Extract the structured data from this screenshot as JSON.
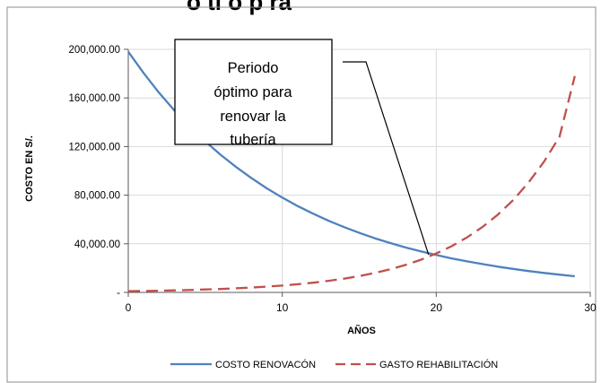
{
  "chart_data": {
    "type": "line",
    "title_fragment": "ó ti o p ra",
    "xlabel": "AÑOS",
    "ylabel": "COSTO EN S/.",
    "xlim": [
      0,
      30
    ],
    "ylim": [
      0,
      200000
    ],
    "x_ticks": [
      "0",
      "10",
      "20",
      "30"
    ],
    "y_ticks": [
      "-",
      "40,000.00",
      "80,000.00",
      "120,000.00",
      "160,000.00",
      "200,000.00"
    ],
    "y_tick_values": [
      0,
      40000,
      80000,
      120000,
      160000,
      200000
    ],
    "x_tick_values": [
      0,
      10,
      20,
      30
    ],
    "grid": true,
    "legend_position": "bottom",
    "series": [
      {
        "name": "COSTO RENOVACÓN",
        "color": "#4f81bd",
        "style": "solid",
        "x": [
          0,
          1,
          2,
          3,
          4,
          5,
          6,
          7,
          8,
          9,
          10,
          11,
          12,
          13,
          14,
          15,
          16,
          17,
          18,
          19,
          20,
          21,
          22,
          23,
          24,
          25,
          26,
          27,
          28,
          29
        ],
        "y": [
          198000,
          180400,
          164300,
          149700,
          136400,
          124300,
          113200,
          103200,
          94000,
          85600,
          78000,
          71100,
          64800,
          59000,
          53800,
          49000,
          44600,
          40700,
          37000,
          33800,
          30800,
          28000,
          25500,
          23300,
          21200,
          19300,
          17600,
          16000,
          14600,
          13300
        ]
      },
      {
        "name": "GASTO REHABILITACIÓN",
        "color": "#c0504d",
        "style": "dashed",
        "x": [
          0,
          1,
          2,
          3,
          4,
          5,
          6,
          7,
          8,
          9,
          10,
          11,
          12,
          13,
          14,
          15,
          16,
          17,
          18,
          19,
          20,
          21,
          22,
          23,
          24,
          25,
          26,
          27,
          28,
          29
        ],
        "y": [
          1000,
          1200,
          1400,
          1700,
          2000,
          2400,
          2800,
          3400,
          4000,
          4800,
          5600,
          6700,
          8000,
          9500,
          11300,
          13400,
          16000,
          19000,
          22600,
          26900,
          32000,
          38000,
          45300,
          53800,
          64000,
          76000,
          90500,
          107600,
          128000,
          178000
        ]
      }
    ],
    "annotation": {
      "lines": [
        "Periodo",
        "óptimo para",
        "renovar la",
        "tubería"
      ],
      "target_x": 19.5,
      "target_y": 31000
    }
  }
}
